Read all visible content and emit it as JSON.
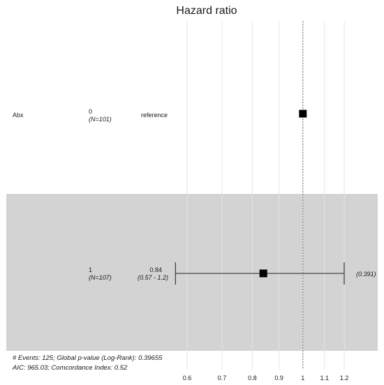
{
  "chart_data": {
    "type": "forest",
    "title": "Hazard ratio",
    "variable": "Abx",
    "x_ticks": [
      0.6,
      0.7,
      0.8,
      0.9,
      1,
      1.1,
      1.2
    ],
    "x_tick_labels": [
      "0.6",
      "0.7",
      "0.8",
      "0.9",
      "1",
      "1.1",
      "1.2"
    ],
    "xlim": [
      0.55,
      1.25
    ],
    "x_scale": "log",
    "reference_line": 1,
    "rows": [
      {
        "level": "0",
        "n_label": "(N=101)",
        "estimate_label": "reference",
        "ci_label": "",
        "p_label": "",
        "hr": 1,
        "ci_low": null,
        "ci_high": null,
        "shaded": false
      },
      {
        "level": "1",
        "n_label": "(N=107)",
        "estimate_label": "0.84",
        "ci_label": "(0.57 - 1.2)",
        "p_label": "(0.391)",
        "hr": 0.84,
        "ci_low": 0.57,
        "ci_high": 1.2,
        "shaded": true
      }
    ],
    "footer": {
      "line1": "# Events:  125; Global p-value (Log-Rank): 0.39655",
      "line2": "AIC: 965.03; Comcordance Index: 0.52"
    },
    "colors": {
      "shade": "#d3d3d3",
      "grid": "#e4e4e4",
      "marker": "#000000",
      "reference_line": "#777777"
    }
  }
}
